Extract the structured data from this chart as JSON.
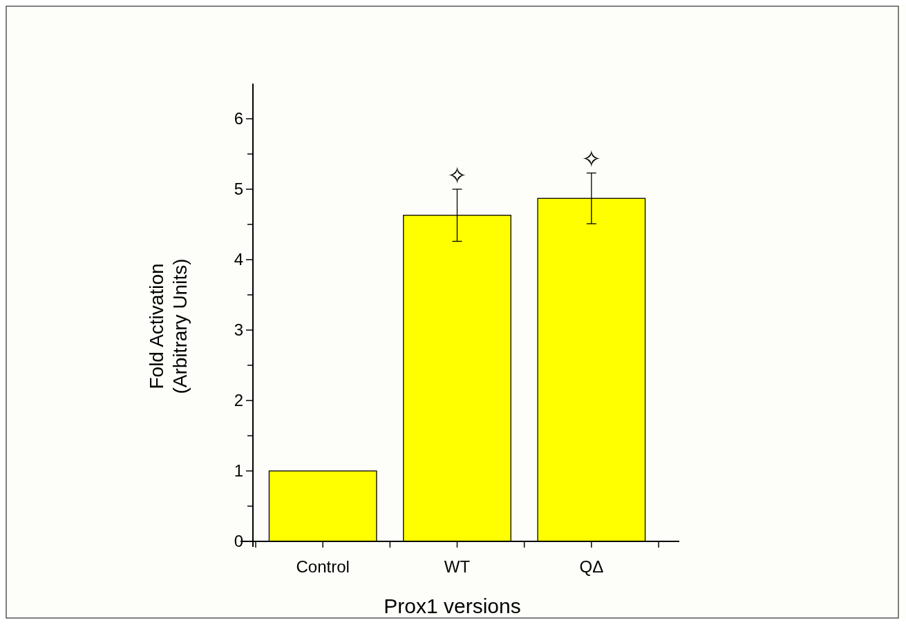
{
  "chart_data": {
    "type": "bar",
    "xlabel": "Prox1 versions",
    "ylabel": "Fold Activation\n(Arbitrary Units)",
    "categories": [
      "Control",
      "WT",
      "QΔ"
    ],
    "values": [
      1.0,
      4.63,
      4.87
    ],
    "errors": [
      null,
      0.37,
      0.36
    ],
    "color": "#ffff00",
    "ylim": [
      0,
      6.5
    ],
    "yticks": [
      0,
      {
        "value": 0.5,
        "label": null
      },
      1,
      {
        "value": 1.5,
        "label": null
      },
      2,
      {
        "value": 2.5,
        "label": null
      },
      3,
      {
        "value": 3.5,
        "label": null
      },
      4,
      {
        "value": 4.5,
        "label": null
      },
      5,
      {
        "value": 5.5,
        "label": null
      },
      6
    ],
    "annotations": [
      {
        "text": "✧",
        "x": "WT",
        "y": 4.63
      },
      {
        "text": "✧",
        "x": "QΔ",
        "y": 4.87
      }
    ]
  }
}
